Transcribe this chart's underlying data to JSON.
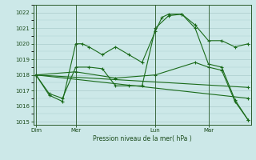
{
  "background_color": "#cce8e8",
  "grid_color": "#aacccc",
  "line_color": "#1a6b1a",
  "marker_color": "#1a6b1a",
  "xlabel": "Pression niveau de la mer( hPa )",
  "ylim": [
    1014.8,
    1022.4
  ],
  "yticks": [
    1015,
    1016,
    1017,
    1018,
    1019,
    1020,
    1021,
    1022
  ],
  "xtick_labels": [
    "Dim",
    "Mer",
    "Lun",
    "Mar"
  ],
  "xtick_positions": [
    0,
    3,
    9,
    13
  ],
  "xlim": [
    -0.2,
    16.2
  ],
  "series1_x": [
    0,
    1,
    2,
    3,
    3.5,
    4,
    5,
    6,
    7,
    8,
    9,
    9.5,
    10,
    11,
    12,
    13,
    14,
    15,
    16
  ],
  "series1_y": [
    1018.0,
    1016.7,
    1016.3,
    1020.0,
    1020.0,
    1019.8,
    1019.3,
    1019.8,
    1019.3,
    1018.8,
    1020.8,
    1021.7,
    1021.9,
    1021.9,
    1021.2,
    1020.2,
    1020.2,
    1019.8,
    1020.0
  ],
  "series2_x": [
    0,
    1,
    2,
    3,
    4,
    5,
    6,
    7,
    8,
    9,
    10,
    11,
    12,
    13,
    14,
    15,
    16
  ],
  "series2_y": [
    1018.0,
    1016.8,
    1016.5,
    1018.5,
    1018.5,
    1018.4,
    1017.3,
    1017.3,
    1017.3,
    1021.0,
    1021.8,
    1021.9,
    1021.0,
    1018.7,
    1018.5,
    1016.4,
    1015.1
  ],
  "series3_x": [
    0,
    3,
    6,
    9,
    12,
    13,
    14,
    15,
    16
  ],
  "series3_y": [
    1018.0,
    1018.2,
    1017.8,
    1018.0,
    1018.8,
    1018.5,
    1018.3,
    1016.3,
    1015.1
  ],
  "series4_x": [
    0,
    16
  ],
  "series4_y": [
    1018.0,
    1017.2
  ],
  "series5_x": [
    0,
    16
  ],
  "series5_y": [
    1018.0,
    1016.5
  ]
}
